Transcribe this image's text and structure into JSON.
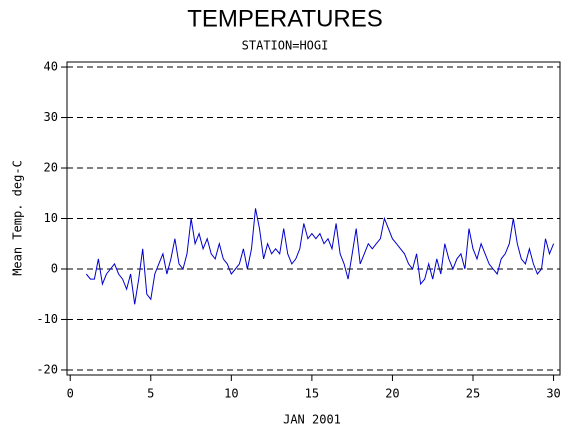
{
  "chart_data": {
    "type": "line",
    "title": "TEMPERATURES",
    "subtitle": "STATION=HOGI",
    "x_label": "JAN 2001",
    "y_label": "Mean Temp. deg-C",
    "xlim": [
      -0.2,
      30.4
    ],
    "ylim": [
      -21,
      41
    ],
    "xticks": [
      0,
      5,
      10,
      15,
      20,
      25,
      30
    ],
    "yticks": [
      -20,
      -10,
      0,
      10,
      20,
      30,
      40
    ],
    "grid": true,
    "series": [
      {
        "name": "HOGI",
        "color": "#0000cc",
        "x": [
          1.0,
          1.25,
          1.5,
          1.75,
          2.0,
          2.25,
          2.5,
          2.75,
          3.0,
          3.25,
          3.5,
          3.75,
          4.0,
          4.25,
          4.5,
          4.75,
          5.0,
          5.25,
          5.5,
          5.75,
          6.0,
          6.25,
          6.5,
          6.75,
          7.0,
          7.25,
          7.5,
          7.75,
          8.0,
          8.25,
          8.5,
          8.75,
          9.0,
          9.25,
          9.5,
          9.75,
          10.0,
          10.25,
          10.5,
          10.75,
          11.0,
          11.25,
          11.5,
          11.75,
          12.0,
          12.25,
          12.5,
          12.75,
          13.0,
          13.25,
          13.5,
          13.75,
          14.0,
          14.25,
          14.5,
          14.75,
          15.0,
          15.25,
          15.5,
          15.75,
          16.0,
          16.25,
          16.5,
          16.75,
          17.0,
          17.25,
          17.5,
          17.75,
          18.0,
          18.25,
          18.5,
          18.75,
          19.0,
          19.25,
          19.5,
          19.75,
          20.0,
          20.25,
          20.5,
          20.75,
          21.0,
          21.25,
          21.5,
          21.75,
          22.0,
          22.25,
          22.5,
          22.75,
          23.0,
          23.25,
          23.5,
          23.75,
          24.0,
          24.25,
          24.5,
          24.75,
          25.0,
          25.25,
          25.5,
          25.75,
          26.0,
          26.25,
          26.5,
          26.75,
          27.0,
          27.25,
          27.5,
          27.75,
          28.0,
          28.25,
          28.5,
          28.75,
          29.0,
          29.25,
          29.5,
          29.75,
          30.0
        ],
        "values": [
          -1,
          -2,
          -2,
          2,
          -3,
          -1,
          0,
          1,
          -1,
          -2,
          -4,
          -1,
          -7,
          -2,
          4,
          -5,
          -6,
          -1,
          1,
          3,
          -1,
          2,
          6,
          1,
          0,
          3,
          10,
          5,
          7,
          4,
          6,
          3,
          2,
          5,
          2,
          1,
          -1,
          0,
          1,
          4,
          0,
          4,
          12,
          8,
          2,
          5,
          3,
          4,
          3,
          8,
          3,
          1,
          2,
          4,
          9,
          6,
          7,
          6,
          7,
          5,
          6,
          4,
          9,
          3,
          1,
          -2,
          3,
          8,
          1,
          3,
          5,
          4,
          5,
          6,
          10,
          8,
          6,
          5,
          4,
          3,
          1,
          0,
          3,
          -3,
          -2,
          1,
          -2,
          2,
          -1,
          5,
          2,
          0,
          2,
          3,
          0,
          8,
          4,
          2,
          5,
          3,
          1,
          0,
          -1,
          2,
          3,
          5,
          10,
          5,
          2,
          1,
          4,
          1,
          -1,
          0,
          6,
          3,
          5
        ]
      }
    ]
  }
}
